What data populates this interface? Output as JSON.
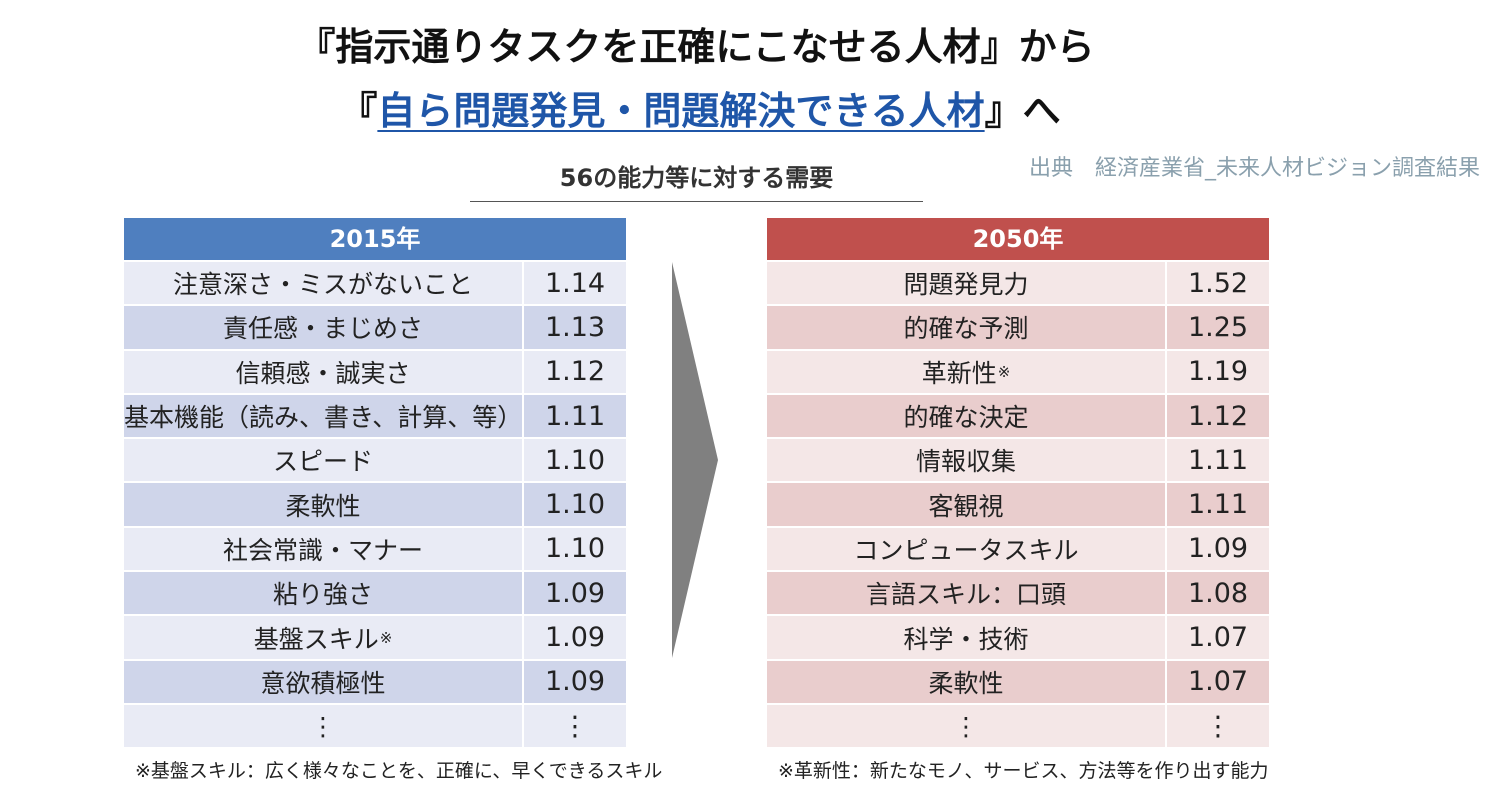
{
  "headline": {
    "line1": "『指示通りタスクを正確にこなせる人材』から",
    "line2_prefix": "『",
    "line2_highlight": "自ら問題発見・問題解決できる人材",
    "line2_suffix": "』へ"
  },
  "source": "出典　経済産業省_未来人材ビジョン調査結果",
  "subtitle": "56の能力等に対する需要",
  "table_2015": {
    "header": "2015年",
    "rows": [
      {
        "name": "注意深さ・ミスがないこと",
        "value": "1.14"
      },
      {
        "name": "責任感・まじめさ",
        "value": "1.13"
      },
      {
        "name": "信頼感・誠実さ",
        "value": "1.12"
      },
      {
        "name": "基本機能（読み、書き、計算、等）",
        "value": "1.11"
      },
      {
        "name": "スピード",
        "value": "1.10"
      },
      {
        "name": "柔軟性",
        "value": "1.10"
      },
      {
        "name": "社会常識・マナー",
        "value": "1.10"
      },
      {
        "name": "粘り強さ",
        "value": "1.09"
      },
      {
        "name": "基盤スキル",
        "mark": "※",
        "value": "1.09"
      },
      {
        "name": "意欲積極性",
        "value": "1.09"
      },
      {
        "name": "⋮",
        "value": "⋮"
      }
    ]
  },
  "table_2050": {
    "header": "2050年",
    "rows": [
      {
        "name": "問題発見力",
        "value": "1.52"
      },
      {
        "name": "的確な予測",
        "value": "1.25"
      },
      {
        "name": "革新性",
        "mark": "※",
        "value": "1.19"
      },
      {
        "name": "的確な決定",
        "value": "1.12"
      },
      {
        "name": "情報収集",
        "value": "1.11"
      },
      {
        "name": "客観視",
        "value": "1.11"
      },
      {
        "name": "コンピュータスキル",
        "value": "1.09"
      },
      {
        "name": "言語スキル：口頭",
        "value": "1.08"
      },
      {
        "name": "科学・技術",
        "value": "1.07"
      },
      {
        "name": "柔軟性",
        "value": "1.07"
      },
      {
        "name": "⋮",
        "value": "⋮"
      }
    ]
  },
  "notes": {
    "left": "※基盤スキル：広く様々なことを、正確に、早くできるスキル",
    "right": "※革新性：新たなモノ、サービス、方法等を作り出す能力"
  },
  "colors": {
    "header_2015": "#4f7fbf",
    "header_2050": "#c0504d",
    "highlight_text": "#1f56a8",
    "source_text": "#8aa0ad",
    "arrow": "#808080"
  },
  "icons": {
    "arrow": "right-pointing-chevron-arrow"
  }
}
